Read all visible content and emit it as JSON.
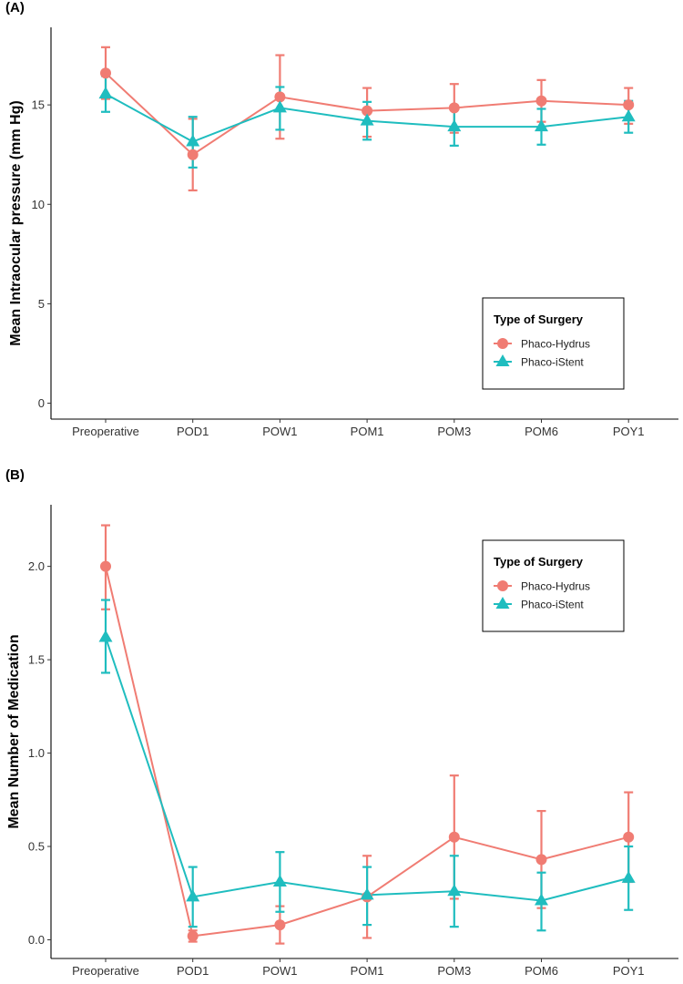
{
  "figure": {
    "panel_a_label": "(A)",
    "panel_b_label": "(B)"
  },
  "colors": {
    "hydrus": "#F07C73",
    "istent": "#1FBDBF"
  },
  "chart_data": [
    {
      "type": "line",
      "panel": "A",
      "ylabel": "Mean Intraocular pressure (mm Hg)",
      "categories": [
        "Preoperative",
        "POD1",
        "POW1",
        "POM1",
        "POM3",
        "POM6",
        "POY1"
      ],
      "ylim": [
        -0.8,
        18.9
      ],
      "yticks": [
        0,
        5,
        10,
        15
      ],
      "ytick_labels": [
        "0",
        "5",
        "10",
        "15"
      ],
      "legend": {
        "title": "Type of Surgery",
        "position": "bottom-right"
      },
      "series": [
        {
          "name": "Phaco-Hydrus",
          "marker": "circle",
          "values": [
            16.6,
            12.5,
            15.4,
            14.7,
            14.85,
            15.2,
            15.0
          ],
          "err_lo": [
            15.3,
            10.7,
            13.3,
            13.4,
            13.6,
            14.15,
            14.05
          ],
          "err_hi": [
            17.9,
            14.3,
            17.5,
            15.85,
            16.05,
            16.25,
            15.85
          ]
        },
        {
          "name": "Phaco-iStent",
          "marker": "triangle",
          "values": [
            15.55,
            13.15,
            14.85,
            14.2,
            13.9,
            13.9,
            14.4
          ],
          "err_lo": [
            14.65,
            11.85,
            13.75,
            13.25,
            12.95,
            13.0,
            13.6
          ],
          "err_hi": [
            16.45,
            14.4,
            15.9,
            15.15,
            14.85,
            14.8,
            15.2
          ]
        }
      ]
    },
    {
      "type": "line",
      "panel": "B",
      "ylabel": "Mean Number of Medication",
      "categories": [
        "Preoperative",
        "POD1",
        "POW1",
        "POM1",
        "POM3",
        "POM6",
        "POY1"
      ],
      "ylim": [
        -0.1,
        2.33
      ],
      "yticks": [
        0,
        0.5,
        1.0,
        1.5,
        2.0
      ],
      "ytick_labels": [
        "0.0",
        "0.5",
        "1.0",
        "1.5",
        "2.0"
      ],
      "legend": {
        "title": "Type of Surgery",
        "position": "top-right"
      },
      "series": [
        {
          "name": "Phaco-Hydrus",
          "marker": "circle",
          "values": [
            2.0,
            0.02,
            0.08,
            0.23,
            0.55,
            0.43,
            0.55
          ],
          "err_lo": [
            1.77,
            -0.01,
            -0.02,
            0.01,
            0.22,
            0.17,
            0.31
          ],
          "err_hi": [
            2.22,
            0.05,
            0.18,
            0.45,
            0.88,
            0.69,
            0.79
          ]
        },
        {
          "name": "Phaco-iStent",
          "marker": "triangle",
          "values": [
            1.62,
            0.23,
            0.31,
            0.24,
            0.26,
            0.21,
            0.33
          ],
          "err_lo": [
            1.43,
            0.07,
            0.15,
            0.08,
            0.07,
            0.05,
            0.16
          ],
          "err_hi": [
            1.82,
            0.39,
            0.47,
            0.39,
            0.45,
            0.36,
            0.5
          ]
        }
      ]
    }
  ]
}
